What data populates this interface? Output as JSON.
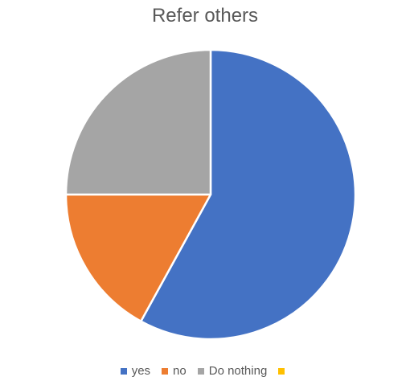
{
  "chart_data": {
    "type": "pie",
    "title": "Refer others",
    "categories": [
      "yes",
      "no",
      "Do nothing",
      ""
    ],
    "values": [
      58,
      17,
      25,
      0
    ],
    "colors": [
      "#4472C4",
      "#ED7D31",
      "#A5A5A5",
      "#FFC000"
    ],
    "legend_position": "bottom"
  }
}
